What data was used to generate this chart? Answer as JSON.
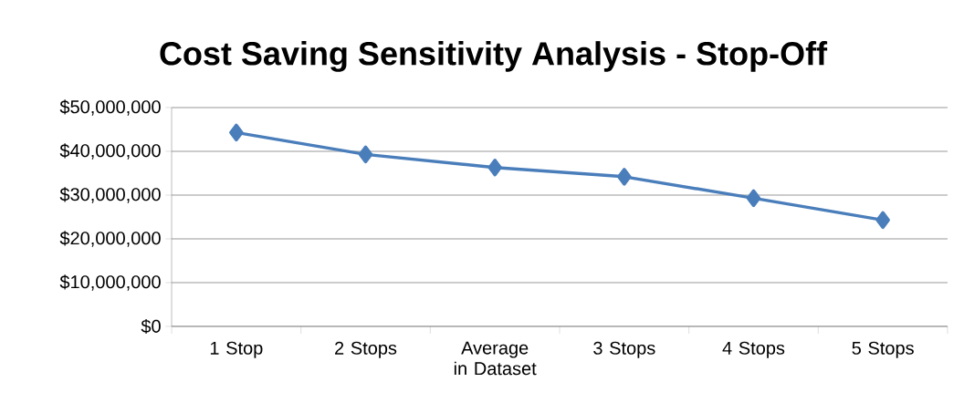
{
  "chart_data": {
    "type": "line",
    "title": "Cost Saving Sensitivity Analysis - Stop-Off",
    "categories": [
      "1 Stop",
      "2 Stops",
      "Average in Dataset",
      "3 Stops",
      "4 Stops",
      "5 Stops"
    ],
    "series": [
      {
        "color": "#4a7ebb",
        "values": [
          44300000,
          39300000,
          36300000,
          34200000,
          29300000,
          24300000
        ]
      }
    ],
    "ylim": [
      0,
      50000000
    ],
    "yticks": [
      {
        "value": 0,
        "label": "$0"
      },
      {
        "value": 10000000,
        "label": "$10,000,000"
      },
      {
        "value": 20000000,
        "label": "$20,000,000"
      },
      {
        "value": 30000000,
        "label": "$30,000,000"
      },
      {
        "value": 40000000,
        "label": "$40,000,000"
      },
      {
        "value": 50000000,
        "label": "$50,000,000"
      }
    ],
    "grid": "y",
    "marker": "diamond",
    "line_style": "solid"
  }
}
